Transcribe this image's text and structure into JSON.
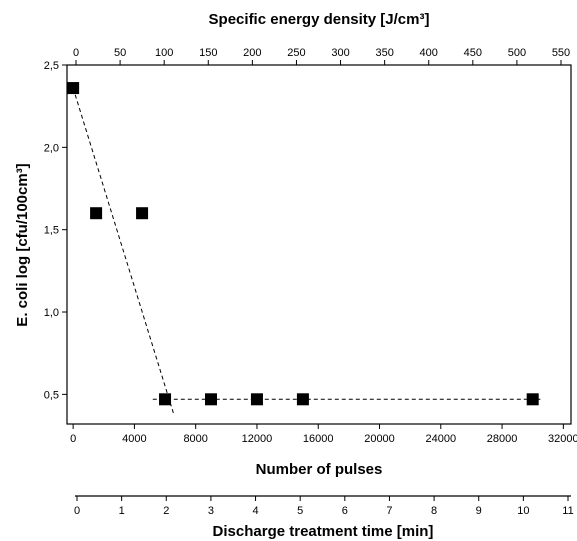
{
  "chart_data": {
    "type": "scatter",
    "title": "",
    "xlabel": "Number of pulses",
    "ylabel": "E. coli log [cfu/100cm³]",
    "xlim": [
      -400,
      32500
    ],
    "ylim": [
      0.32,
      2.5
    ],
    "x_ticks": [
      0,
      4000,
      8000,
      12000,
      16000,
      20000,
      24000,
      28000,
      32000
    ],
    "x_tick_labels": [
      "0",
      "4000",
      "8000",
      "12000",
      "16000",
      "20000",
      "24000",
      "28000",
      "32000"
    ],
    "y_ticks": [
      0.5,
      1.0,
      1.5,
      2.0,
      2.5
    ],
    "y_tick_labels": [
      "0,5",
      "1,0",
      "1,5",
      "2,0",
      "2,5"
    ],
    "top_axis": {
      "label": "Specific energy density [J/cm³]",
      "ticks": [
        0,
        50,
        100,
        150,
        200,
        250,
        300,
        350,
        400,
        450,
        500,
        550
      ],
      "tick_labels": [
        "0",
        "50",
        "100",
        "150",
        "200",
        "250",
        "300",
        "350",
        "400",
        "450",
        "500",
        "550"
      ]
    },
    "bottom_axis_2": {
      "label": "Discharge treatment time [min]",
      "ticks": [
        0,
        1,
        2,
        3,
        4,
        5,
        6,
        7,
        8,
        9,
        10,
        11
      ],
      "tick_labels": [
        "0",
        "1",
        "2",
        "3",
        "4",
        "5",
        "6",
        "7",
        "8",
        "9",
        "10",
        "11"
      ]
    },
    "series": [
      {
        "x": [
          0,
          1500,
          4500,
          6000,
          9000,
          12000,
          15000,
          30000
        ],
        "y": [
          2.36,
          1.6,
          1.6,
          0.47,
          0.47,
          0.47,
          0.47,
          0.47
        ]
      }
    ],
    "fit_lines": [
      {
        "style": "dashed",
        "x": [
          0,
          6600
        ],
        "y": [
          2.36,
          0.37
        ]
      },
      {
        "style": "dashed",
        "x": [
          5200,
          30500
        ],
        "y": [
          0.47,
          0.47
        ]
      }
    ],
    "grid": false,
    "legend": "none"
  }
}
